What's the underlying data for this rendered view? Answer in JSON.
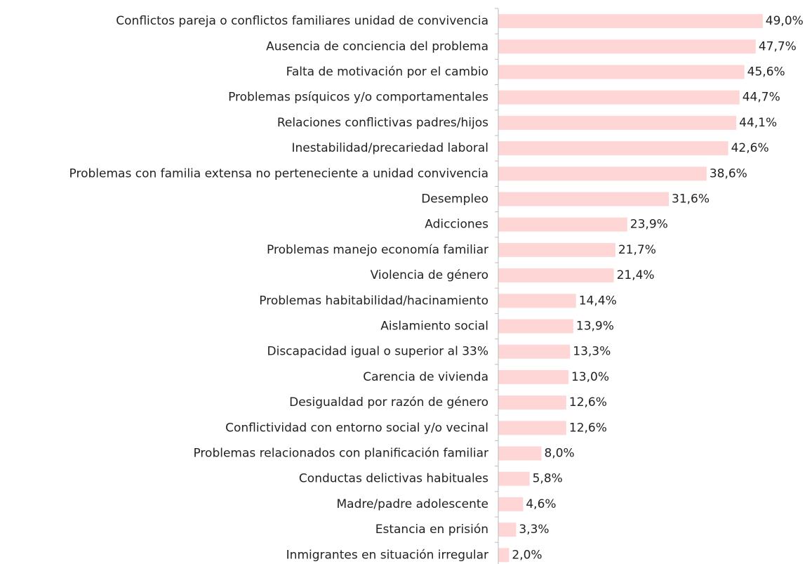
{
  "chart_data": {
    "type": "barh",
    "categories": [
      "Conflictos pareja o conflictos familiares unidad de convivencia",
      "Ausencia de conciencia del problema",
      "Falta de motivación por el cambio",
      "Problemas psíquicos y/o comportamentales",
      "Relaciones conflictivas padres/hijos",
      "Inestabilidad/precariedad laboral",
      "Problemas con familia extensa no perteneciente a unidad convivencia",
      "Desempleo",
      "Adicciones",
      "Problemas manejo economía familiar",
      "Violencia de género",
      "Problemas habitabilidad/hacinamiento",
      "Aislamiento social",
      "Discapacidad igual o superior al 33%",
      "Carencia de vivienda",
      "Desigualdad por razón de género",
      "Conflictividad con entorno social y/o vecinal",
      "Problemas relacionados con planificación familiar",
      "Conductas delictivas habituales",
      "Madre/padre adolescente",
      "Estancia en prisión",
      "Inmigrantes en situación irregular"
    ],
    "values": [
      49.0,
      47.7,
      45.6,
      44.7,
      44.1,
      42.6,
      38.6,
      31.6,
      23.9,
      21.7,
      21.4,
      14.4,
      13.9,
      13.3,
      13.0,
      12.6,
      12.6,
      8.0,
      5.8,
      4.6,
      3.3,
      2.0
    ],
    "value_labels": [
      "49,0%",
      "47,7%",
      "45,6%",
      "44,7%",
      "44,1%",
      "42,6%",
      "38,6%",
      "31,6%",
      "23,9%",
      "21,7%",
      "21,4%",
      "14,4%",
      "13,9%",
      "13,3%",
      "13,0%",
      "12,6%",
      "12,6%",
      "8,0%",
      "5,8%",
      "4,6%",
      "3,3%",
      "2,0%"
    ],
    "color": "#ffd6d6"
  }
}
